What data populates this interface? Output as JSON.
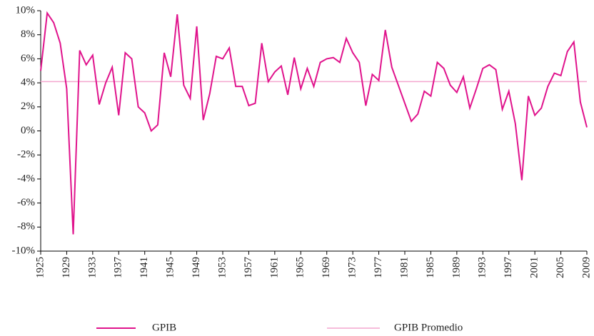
{
  "chart_data": {
    "type": "line",
    "x": [
      1925,
      1926,
      1927,
      1928,
      1929,
      1930,
      1931,
      1932,
      1933,
      1934,
      1935,
      1936,
      1937,
      1938,
      1939,
      1940,
      1941,
      1942,
      1943,
      1944,
      1945,
      1946,
      1947,
      1948,
      1949,
      1950,
      1951,
      1952,
      1953,
      1954,
      1955,
      1956,
      1957,
      1958,
      1959,
      1960,
      1961,
      1962,
      1963,
      1964,
      1965,
      1966,
      1967,
      1968,
      1969,
      1970,
      1971,
      1972,
      1973,
      1974,
      1975,
      1976,
      1977,
      1978,
      1979,
      1980,
      1981,
      1982,
      1983,
      1984,
      1985,
      1986,
      1987,
      1988,
      1989,
      1990,
      1991,
      1992,
      1993,
      1994,
      1995,
      1996,
      1997,
      1998,
      1999,
      2000,
      2001,
      2002,
      2003,
      2004,
      2005,
      2006,
      2007,
      2008,
      2009
    ],
    "series": [
      {
        "name": "GPIB",
        "color": "#e0138c",
        "values": [
          5.0,
          9.8,
          9.0,
          7.3,
          3.5,
          -8.6,
          6.7,
          5.5,
          6.3,
          2.2,
          4.0,
          5.3,
          1.3,
          6.5,
          6.0,
          2.0,
          1.5,
          0.0,
          0.5,
          6.5,
          4.5,
          9.7,
          3.8,
          2.7,
          8.7,
          0.9,
          3.1,
          6.2,
          6.0,
          6.9,
          3.7,
          3.7,
          2.1,
          2.3,
          7.3,
          4.1,
          4.9,
          5.4,
          3.0,
          6.1,
          3.5,
          5.2,
          3.7,
          5.7,
          6.0,
          6.1,
          5.7,
          7.7,
          6.5,
          5.7,
          2.1,
          4.7,
          4.2,
          8.4,
          5.3,
          3.8,
          2.3,
          0.8,
          1.4,
          3.3,
          2.9,
          5.7,
          5.2,
          3.8,
          3.2,
          4.5,
          1.9,
          3.5,
          5.2,
          5.5,
          5.1,
          1.8,
          3.3,
          0.6,
          -4.1,
          2.9,
          1.3,
          1.9,
          3.7,
          4.8,
          4.6,
          6.6,
          7.4,
          2.4,
          0.3
        ]
      },
      {
        "name": "GPIB Promedio",
        "color": "#f4a6cf",
        "x": [
          1925,
          2009
        ],
        "values": [
          4.1,
          4.1
        ]
      }
    ],
    "xlim": [
      1925,
      2009
    ],
    "xticks": [
      1925,
      1929,
      1933,
      1937,
      1941,
      1945,
      1949,
      1953,
      1957,
      1961,
      1965,
      1969,
      1973,
      1977,
      1981,
      1985,
      1989,
      1993,
      1997,
      2001,
      2005,
      2009
    ],
    "ylim": [
      -10,
      10
    ],
    "yticks": [
      {
        "value": -10,
        "label": "-10%"
      },
      {
        "value": -8,
        "label": "-8%"
      },
      {
        "value": -6,
        "label": "-6%"
      },
      {
        "value": -4,
        "label": "-4%"
      },
      {
        "value": -2,
        "label": "-2%"
      },
      {
        "value": 0,
        "label": "0%"
      },
      {
        "value": 2,
        "label": "2%"
      },
      {
        "value": 4,
        "label": "4%"
      },
      {
        "value": 6,
        "label": "6%"
      },
      {
        "value": 8,
        "label": "8%"
      },
      {
        "value": 10,
        "label": "10%"
      }
    ],
    "grid": false
  }
}
